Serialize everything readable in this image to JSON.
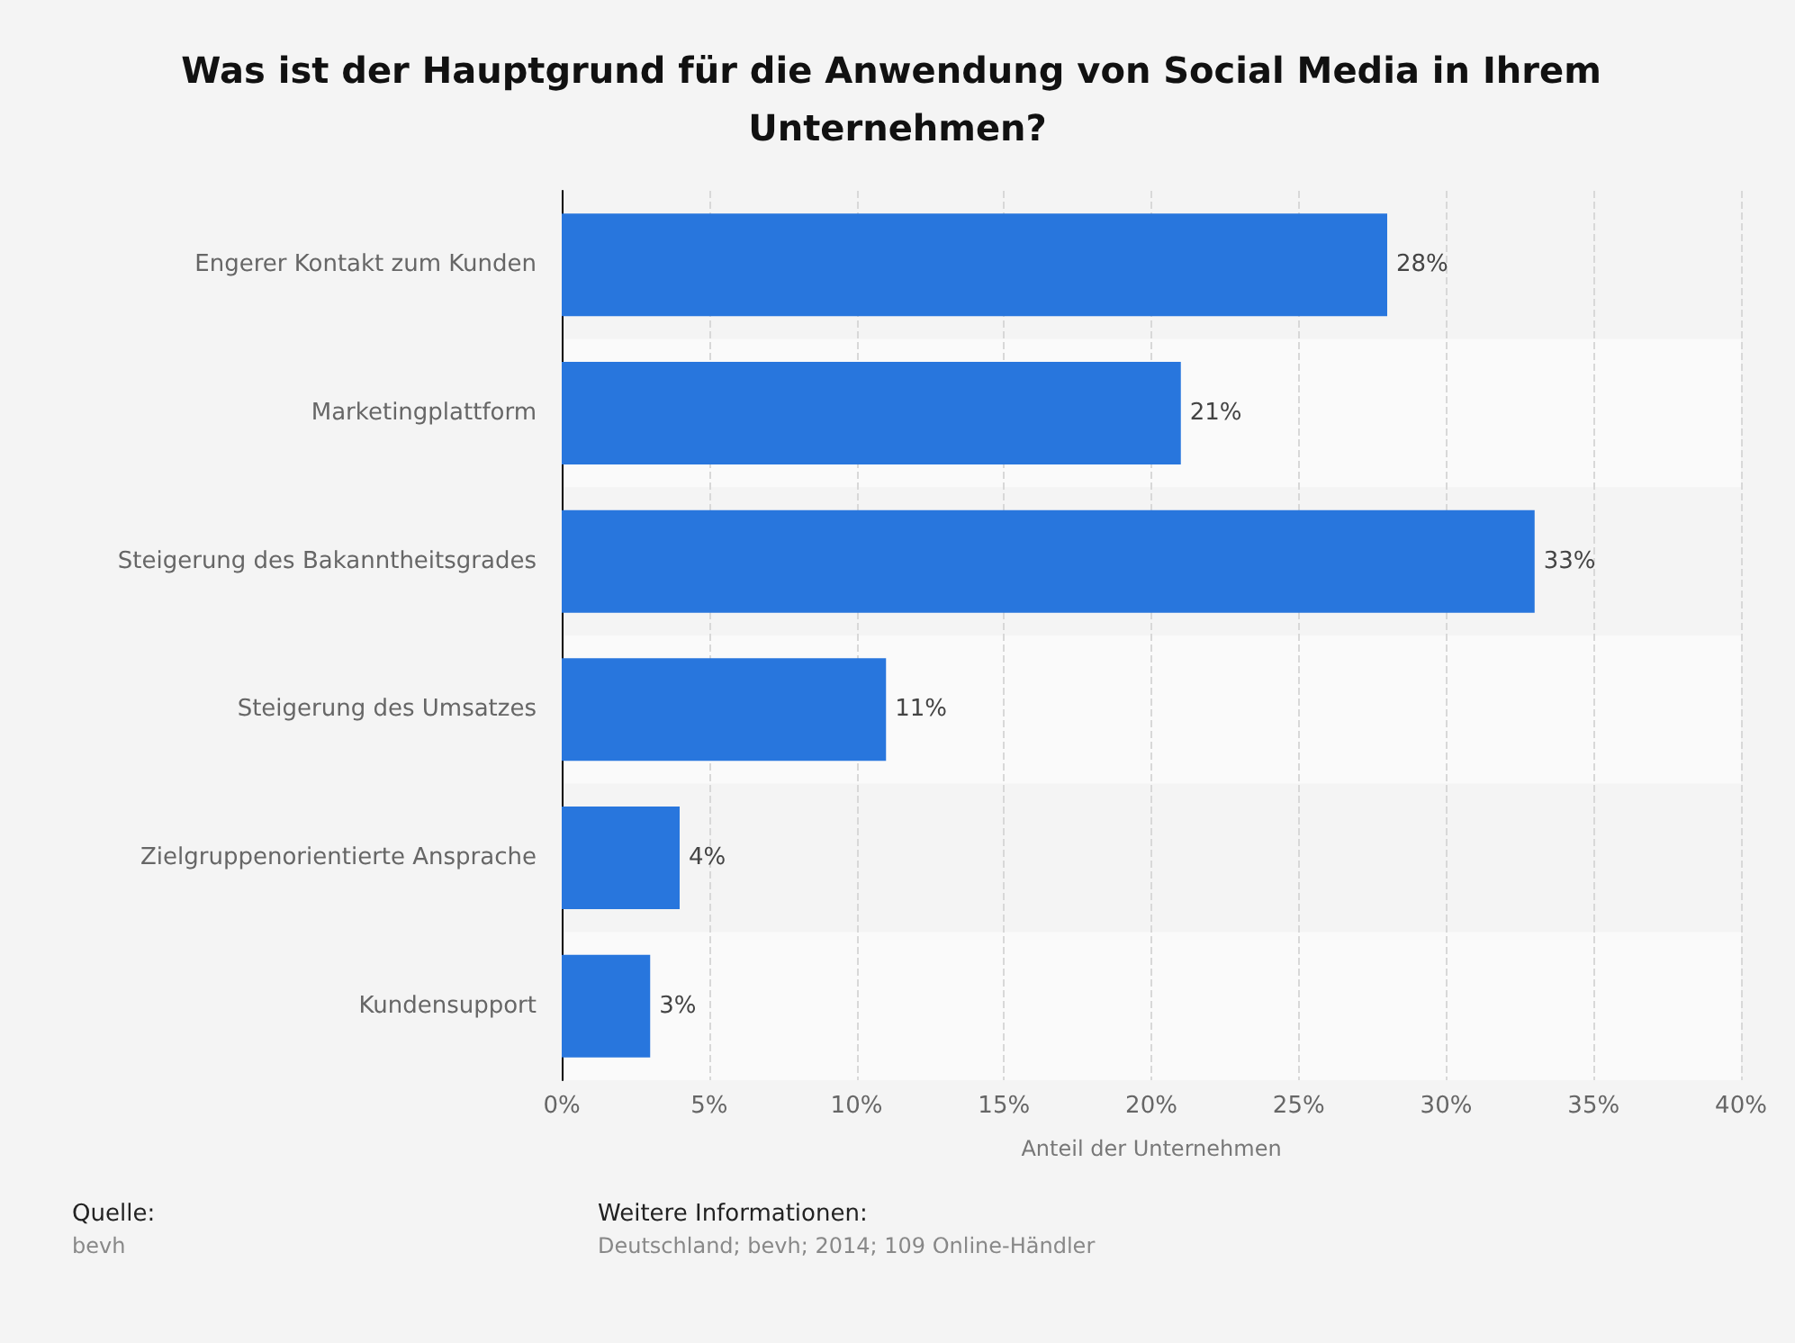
{
  "chart_data": {
    "type": "bar",
    "orientation": "horizontal",
    "title": "Was ist der Hauptgrund für die Anwendung von Social Media in Ihrem Unternehmen?",
    "xlabel": "Anteil der Unternehmen",
    "categories": [
      "Engerer Kontakt zum Kunden",
      "Marketingplattform",
      "Steigerung des Bakanntheitsgrades",
      "Steigerung des Umsatzes",
      "Zielgruppenorientierte Ansprache",
      "Kundensupport"
    ],
    "values": [
      28,
      21,
      33,
      11,
      4,
      3
    ],
    "value_labels": [
      "28%",
      "21%",
      "33%",
      "11%",
      "4%",
      "3%"
    ],
    "color": "#2876dd",
    "xlim": [
      0,
      40
    ],
    "xticks": [
      {
        "value": 0,
        "label": "0%"
      },
      {
        "value": 5,
        "label": "5%"
      },
      {
        "value": 10,
        "label": "10%"
      },
      {
        "value": 15,
        "label": "15%"
      },
      {
        "value": 20,
        "label": "20%"
      },
      {
        "value": 25,
        "label": "25%"
      },
      {
        "value": 30,
        "label": "30%"
      },
      {
        "value": 35,
        "label": "35%"
      },
      {
        "value": 40,
        "label": "40%"
      }
    ],
    "grid": "x",
    "annotations": [
      "Quelle:",
      "bevh",
      "Weitere Informationen:",
      "Deutschland; bevh; 2014; 109 Online-Händler"
    ]
  }
}
